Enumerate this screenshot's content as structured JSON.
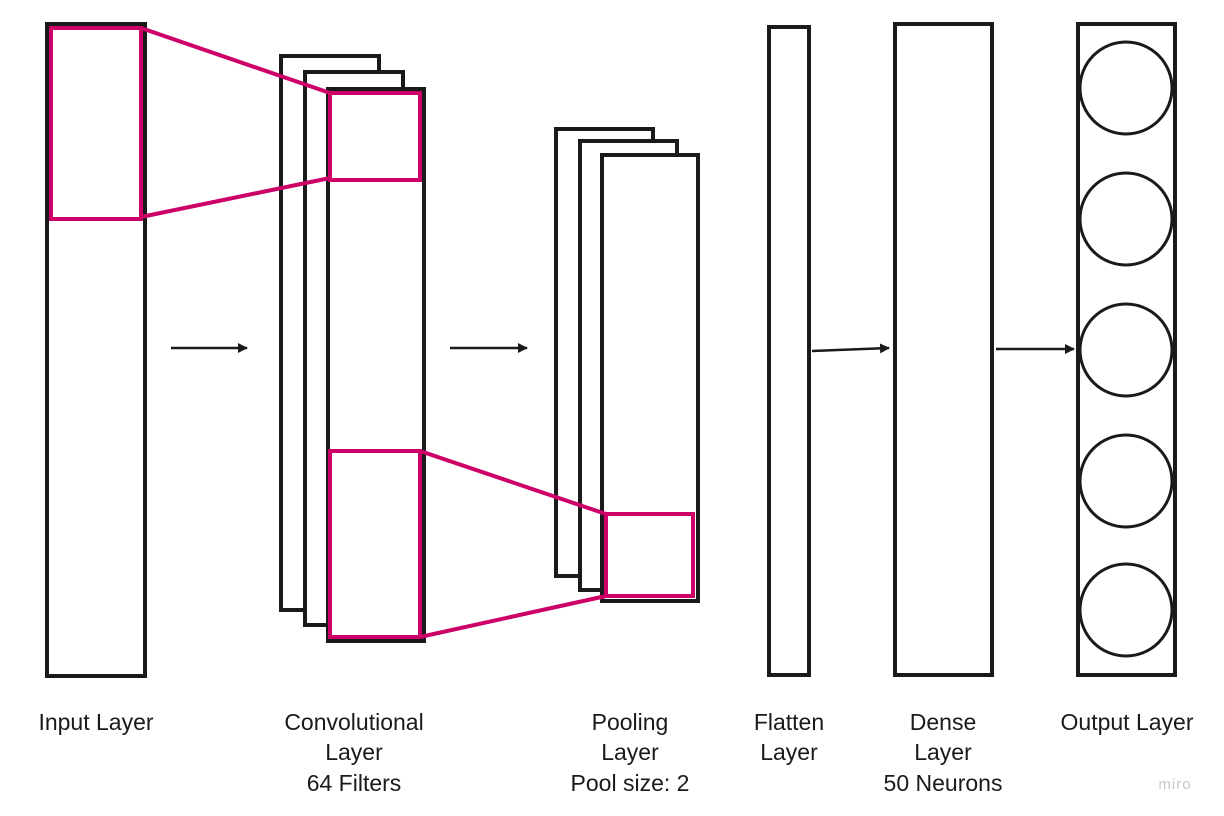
{
  "labels": {
    "input": "Input Layer",
    "conv_line1": "Convolutional",
    "conv_line2": "Layer",
    "conv_line3": "64 Filters",
    "pool_line1": "Pooling",
    "pool_line2": "Layer",
    "pool_line3": "Pool size: 2",
    "flatten_line1": "Flatten",
    "flatten_line2": "Layer",
    "dense_line1": "Dense",
    "dense_line2": "Layer",
    "dense_line3": "50 Neurons",
    "output": "Output Layer"
  },
  "watermark": "miro",
  "colors": {
    "stroke": "#1a1a1a",
    "highlight": "#cc0066",
    "background": "#ffffff"
  }
}
